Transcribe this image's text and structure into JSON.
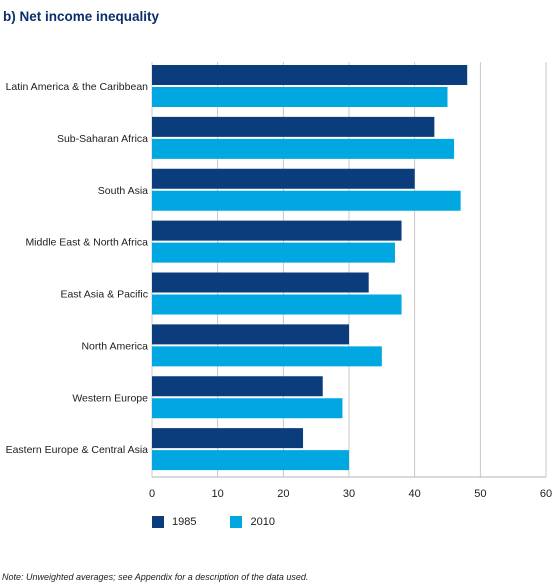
{
  "chart_data": {
    "type": "bar",
    "orientation": "horizontal",
    "title": "b) Net income inequality",
    "categories": [
      "Latin America & the Caribbean",
      "Sub-Saharan Africa",
      "South Asia",
      "Middle East & North Africa",
      "East Asia & Pacific",
      "North America",
      "Western Europe",
      "Eastern Europe & Central Asia"
    ],
    "series": [
      {
        "name": "1985",
        "color": "#0b3d7c",
        "values": [
          48,
          43,
          40,
          38,
          33,
          30,
          26,
          23
        ]
      },
      {
        "name": "2010",
        "color": "#00a7e1",
        "values": [
          45,
          46,
          47,
          37,
          38,
          35,
          29,
          30
        ]
      }
    ],
    "xlim": [
      0,
      60
    ],
    "xticks": [
      0,
      10,
      20,
      30,
      40,
      50,
      60
    ],
    "xlabel": "",
    "ylabel": "",
    "grid": "vertical",
    "legend_position": "bottom-left",
    "note": "Note: Unweighted averages; see Appendix for a description of the data used."
  }
}
